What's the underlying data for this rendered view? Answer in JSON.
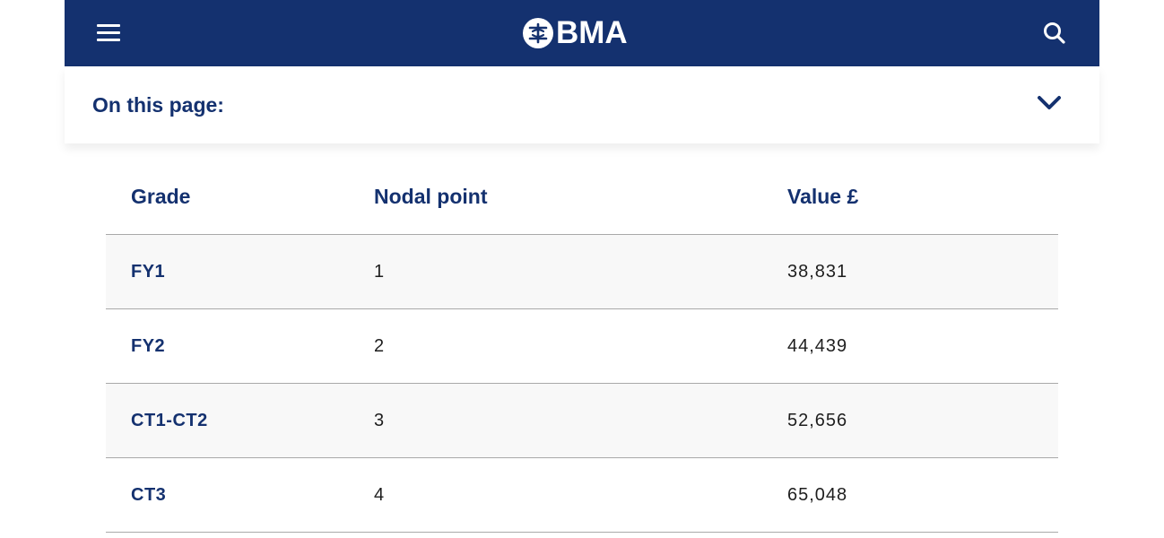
{
  "header": {
    "logo_text": "BMA",
    "menu_icon": "hamburger-menu-icon",
    "search_icon": "search-icon",
    "background": "#14316f"
  },
  "on_this_page": {
    "label": "On this page:",
    "icon": "chevron-down-icon"
  },
  "table": {
    "columns": [
      "Grade",
      "Nodal point",
      "Value £"
    ],
    "rows": [
      {
        "grade": "FY1",
        "nodal_point": "1",
        "value": "38,831"
      },
      {
        "grade": "FY2",
        "nodal_point": "2",
        "value": "44,439"
      },
      {
        "grade": "CT1-CT2",
        "nodal_point": "3",
        "value": "52,656"
      },
      {
        "grade": "CT3",
        "nodal_point": "4",
        "value": "65,048"
      }
    ]
  },
  "colors": {
    "brand_navy": "#14316f",
    "row_alt": "#f8f8f8",
    "divider": "#a9a9a9"
  }
}
